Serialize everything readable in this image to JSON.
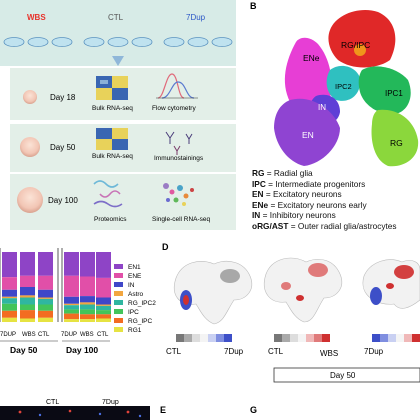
{
  "panel_a": {
    "groups": [
      "WBS",
      "CTL",
      "7Dup"
    ],
    "group_colors": [
      "#e8322b",
      "#555555",
      "#2b57c6"
    ],
    "stages": [
      {
        "day": "Day 18",
        "assays": [
          "Bulk RNA-seq",
          "Flow cytometry"
        ]
      },
      {
        "day": "Day 50",
        "assays": [
          "Bulk RNA-seq",
          "Immunostainings"
        ]
      },
      {
        "day": "Day 100",
        "assays": [
          "Proteomics",
          "Single-cell RNA-seq"
        ]
      }
    ]
  },
  "panel_b": {
    "letter": "B",
    "clusters": [
      "ENe",
      "RG/IPC",
      "IPC2",
      "IPC1",
      "IN",
      "EN",
      "RG"
    ],
    "legend": [
      {
        "abbr": "RG",
        "text": " = Radial glia"
      },
      {
        "abbr": "IPC",
        "text": " = Intermediate progenitors"
      },
      {
        "abbr": "EN",
        "text": " = Excitatory neurons"
      },
      {
        "abbr": "ENe",
        "text": " = Excitatory neurons early"
      },
      {
        "abbr": "IN",
        "text": " = Inhibitory neurons"
      },
      {
        "abbr": "oRG/AST",
        "text": " = Outer radial glia/astrocytes"
      }
    ]
  },
  "panel_c": {
    "chart_data": {
      "type": "bar",
      "stacked": true,
      "groups": [
        {
          "label": "Day 50",
          "categories": [
            "7DUP",
            "WBS",
            "CTL"
          ]
        },
        {
          "label": "Day 100",
          "categories": [
            "7DUP",
            "WBS",
            "CTL"
          ]
        }
      ],
      "legend": [
        "EN1",
        "ENE",
        "IN",
        "Astro",
        "RG_IPC2",
        "IPC",
        "RG_IPC",
        "RG1"
      ],
      "colors": {
        "EN1": "#8e44c6",
        "ENE": "#e14fa8",
        "IN": "#3f47c8",
        "Astro": "#f2a640",
        "RG_IPC2": "#2fb6a0",
        "IPC": "#43c45a",
        "RG_IPC": "#f36c21",
        "RG1": "#e6e342"
      }
    }
  },
  "panel_d": {
    "letter": "D",
    "maps": [
      {
        "left": "CTL",
        "right": "7Dup"
      },
      {
        "left": "CTL",
        "right": "WBS"
      },
      {
        "left": "7Dup",
        "right": ""
      }
    ]
  },
  "panel_e": {
    "letter": "E",
    "labels": [
      "CTL",
      "7Dup"
    ]
  },
  "panel_g": {
    "letter": "G",
    "box_label": "Day 50"
  }
}
